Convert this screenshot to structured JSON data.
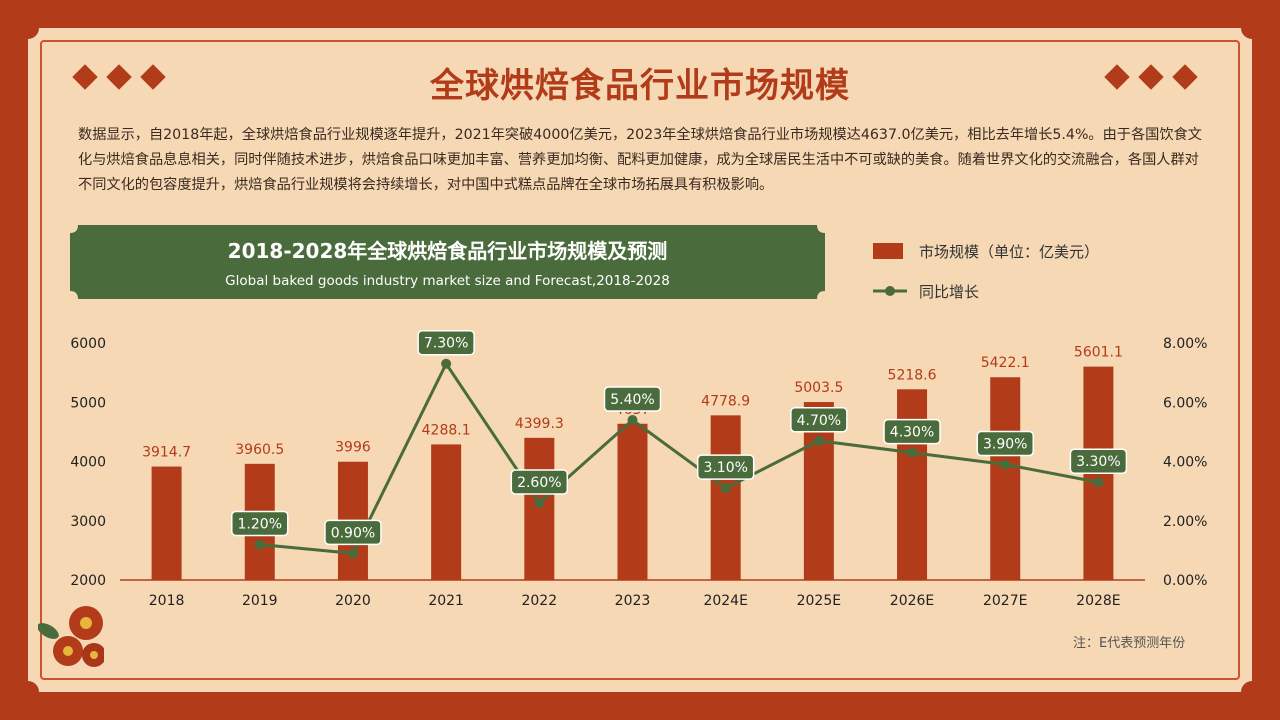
{
  "title": "全球烘焙食品行业市场规模",
  "intro": "数据显示，自2018年起，全球烘焙食品行业规模逐年提升，2021年突破4000亿美元，2023年全球烘焙食品行业市场规模达4637.0亿美元，相比去年增长5.4%。由于各国饮食文化与烘焙食品息息相关，同时伴随技术进步，烘焙食品口味更加丰富、营养更加均衡、配料更加健康，成为全球居民生活中不可或缺的美食。随着世界文化的交流融合，各国人群对不同文化的包容度提升，烘焙食品行业规模将会持续增长，对中国中式糕点品牌在全球市场拓展具有积极影响。",
  "note": "注：E代表预测年份",
  "colors": {
    "bar": "#b23c19",
    "line": "#4a6b3c",
    "background": "#f6d8b4"
  },
  "chart_data": {
    "type": "bar",
    "title": "2018-2028年全球烘焙食品行业市场规模及预测",
    "subtitle": "Global baked goods industry market size and Forecast,2018-2028",
    "categories": [
      "2018",
      "2019",
      "2020",
      "2021",
      "2022",
      "2023",
      "2024E",
      "2025E",
      "2026E",
      "2027E",
      "2028E"
    ],
    "series": [
      {
        "name": "市场规模（单位：亿美元）",
        "type": "bar",
        "axis": "left",
        "values": [
          3914.7,
          3960.5,
          3996,
          4288.1,
          4399.3,
          4637,
          4778.9,
          5003.5,
          5218.6,
          5422.1,
          5601.1
        ],
        "labels": [
          "3914.7",
          "3960.5",
          "3996",
          "4288.1",
          "4399.3",
          "4637",
          "4778.9",
          "5003.5",
          "5218.6",
          "5422.1",
          "5601.1"
        ]
      },
      {
        "name": "同比增长",
        "type": "line",
        "axis": "right",
        "values": [
          null,
          1.2,
          0.9,
          7.3,
          2.6,
          5.4,
          3.1,
          4.7,
          4.3,
          3.9,
          3.3
        ],
        "labels": [
          null,
          "1.20%",
          "0.90%",
          "7.30%",
          "2.60%",
          "5.40%",
          "3.10%",
          "4.70%",
          "4.30%",
          "3.90%",
          "3.30%"
        ]
      }
    ],
    "y_left": {
      "min": 2000,
      "max": 6000,
      "ticks": [
        "6000",
        "5000",
        "4000",
        "3000",
        "2000"
      ]
    },
    "y_right": {
      "min": 0,
      "max": 8,
      "ticks": [
        "8.00%",
        "6.00%",
        "4.00%",
        "2.00%",
        "0.00%"
      ]
    },
    "legend_position": "top-right",
    "grid": false
  }
}
